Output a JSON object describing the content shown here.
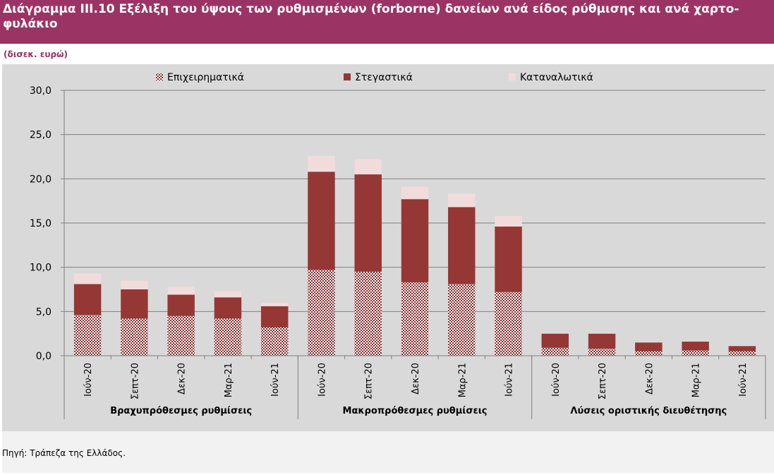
{
  "header": {
    "title": "Διάγραμμα ΙΙΙ.10 Εξέλιξη του ύψους των ρυθμισμένων (forborne) δανείων ανά είδος ρύθμισης και ανά χαρτο-φυλάκιο",
    "unit": "(δισεκ. ευρώ)"
  },
  "footer": {
    "source": "Πηγή: Τράπεζα της Ελλάδος."
  },
  "colors": {
    "title_bg": "#9b3365",
    "plot_bg": "#d9d9d9",
    "business": "#8b2a2a",
    "mortgage": "#953735",
    "consumer": "#f2dcdb"
  },
  "chart_data": {
    "type": "bar",
    "stacked": true,
    "ylim": [
      0,
      30
    ],
    "yticks": [
      "0,0",
      "5,0",
      "10,0",
      "15,0",
      "20,0",
      "25,0",
      "30,0"
    ],
    "legend_position": "top",
    "grid": true,
    "groups": [
      {
        "label": "Βραχυπρόθεσμες ρυθμίσεις",
        "categories": [
          "Ιούν-20",
          "Σεπτ-20",
          "Δεκ-20",
          "Μαρ-21",
          "Ιούν-21"
        ]
      },
      {
        "label": "Μακροπρόθεσμες ρυθμίσεις",
        "categories": [
          "Ιούν-20",
          "Σεπτ-20",
          "Δεκ-20",
          "Μαρ-21",
          "Ιούν-21"
        ]
      },
      {
        "label": "Λύσεις οριστικής διευθέτησης",
        "categories": [
          "Ιούν-20",
          "Σεπτ-20",
          "Δεκ-20",
          "Μαρ-21",
          "Ιούν-21"
        ]
      }
    ],
    "series": [
      {
        "name": "Επιχειρηματικά",
        "pattern": "hatched",
        "values": [
          4.6,
          4.2,
          4.5,
          4.2,
          3.2,
          9.7,
          9.5,
          8.3,
          8.1,
          7.2,
          0.9,
          0.8,
          0.5,
          0.6,
          0.5
        ]
      },
      {
        "name": "Στεγαστικά",
        "values": [
          3.5,
          3.3,
          2.4,
          2.4,
          2.4,
          11.1,
          11.0,
          9.4,
          8.7,
          7.4,
          1.6,
          1.7,
          1.0,
          1.0,
          0.6
        ]
      },
      {
        "name": "Καταναλωτικά",
        "values": [
          1.2,
          1.0,
          0.9,
          0.7,
          0.4,
          1.8,
          1.7,
          1.4,
          1.5,
          1.2,
          0.1,
          0.1,
          0.05,
          0.05,
          0.05
        ]
      }
    ]
  }
}
